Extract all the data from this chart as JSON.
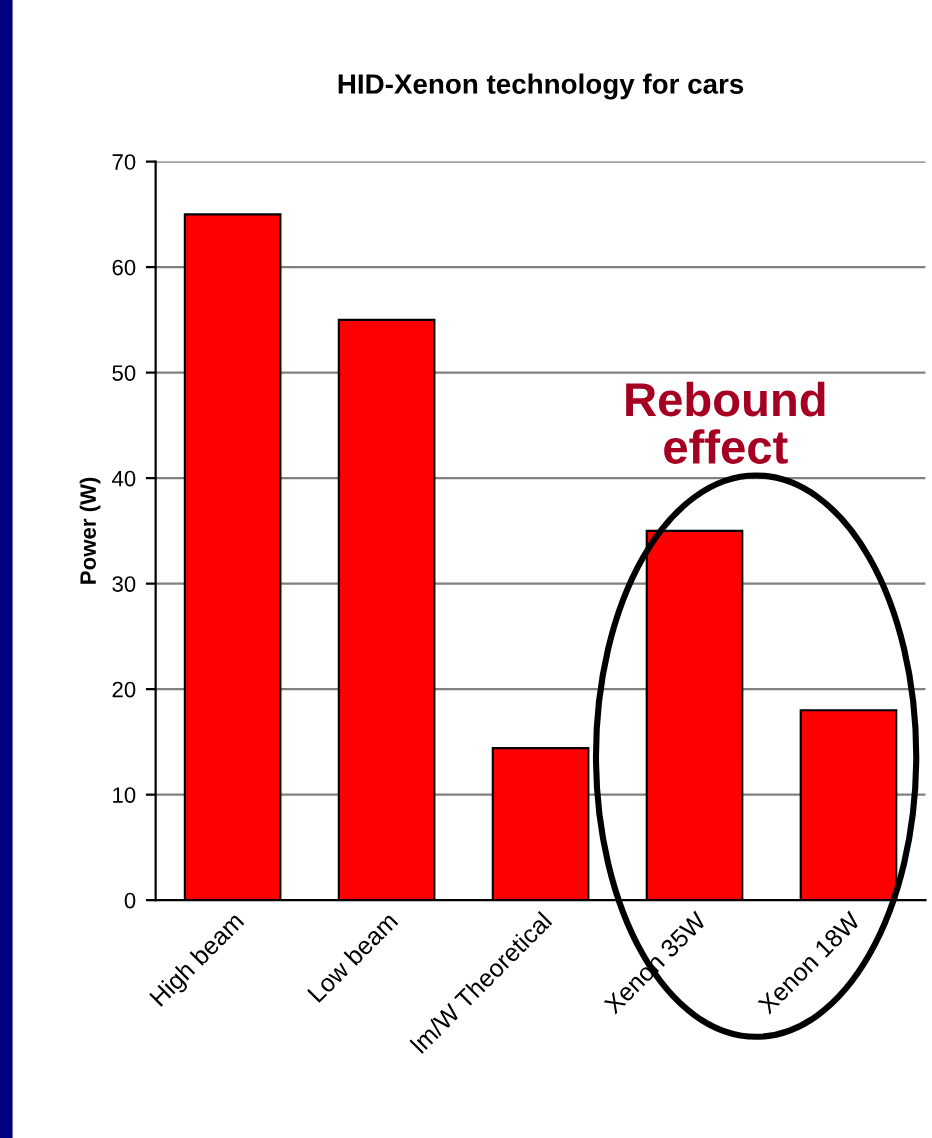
{
  "chart_data": {
    "type": "bar",
    "title": "HID-Xenon technology for cars",
    "ylabel": "Power (W)",
    "categories": [
      "High beam",
      "Low beam",
      "lm/W Theoretical",
      "Xenon 35W",
      "Xenon 18W"
    ],
    "values": [
      65,
      55,
      14.4,
      35,
      18
    ],
    "color": "#ff0000",
    "ylim": [
      0,
      70
    ],
    "yticks": [
      0,
      10,
      20,
      30,
      40,
      50,
      60,
      70
    ],
    "grid": "y",
    "annotations": [
      "Rebound effect"
    ]
  }
}
